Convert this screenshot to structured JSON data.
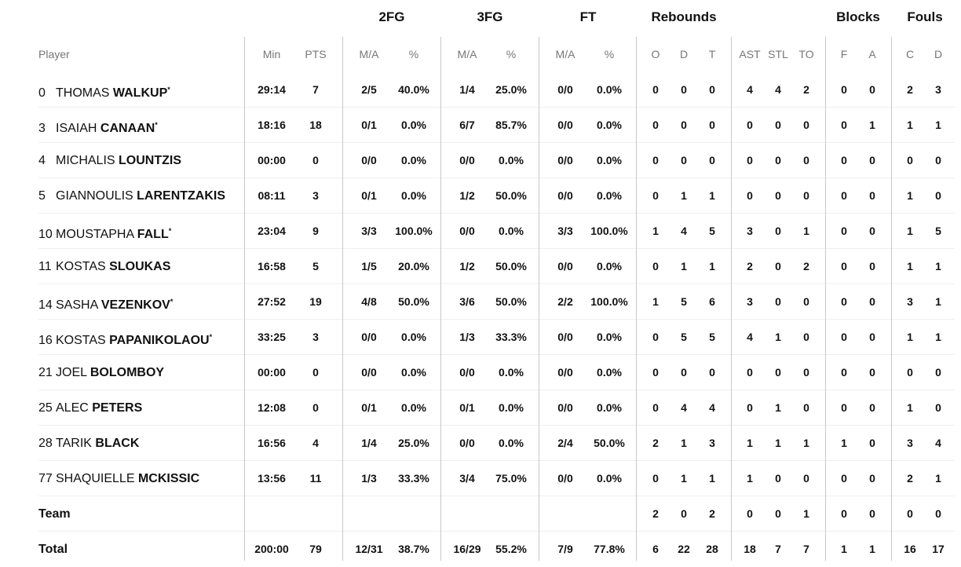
{
  "groups": {
    "fg2": "2FG",
    "fg3": "3FG",
    "ft": "FT",
    "rebounds": "Rebounds",
    "blocks": "Blocks",
    "fouls": "Fouls"
  },
  "columns": [
    "Player",
    "Min",
    "PTS",
    "M/A",
    "%",
    "M/A",
    "%",
    "M/A",
    "%",
    "O",
    "D",
    "T",
    "AST",
    "STL",
    "TO",
    "F",
    "A",
    "C",
    "D"
  ],
  "starter_mark": "*",
  "players": [
    {
      "num": "0",
      "first": "THOMAS",
      "last": "WALKUP",
      "starter": true,
      "stats": [
        "29:14",
        "7",
        "2/5",
        "40.0%",
        "1/4",
        "25.0%",
        "0/0",
        "0.0%",
        "0",
        "0",
        "0",
        "4",
        "4",
        "2",
        "0",
        "0",
        "2",
        "3"
      ]
    },
    {
      "num": "3",
      "first": "ISAIAH",
      "last": "CANAAN",
      "starter": true,
      "stats": [
        "18:16",
        "18",
        "0/1",
        "0.0%",
        "6/7",
        "85.7%",
        "0/0",
        "0.0%",
        "0",
        "0",
        "0",
        "0",
        "0",
        "0",
        "0",
        "1",
        "1",
        "1"
      ]
    },
    {
      "num": "4",
      "first": "MICHALIS",
      "last": "LOUNTZIS",
      "starter": false,
      "stats": [
        "00:00",
        "0",
        "0/0",
        "0.0%",
        "0/0",
        "0.0%",
        "0/0",
        "0.0%",
        "0",
        "0",
        "0",
        "0",
        "0",
        "0",
        "0",
        "0",
        "0",
        "0"
      ]
    },
    {
      "num": "5",
      "first": "GIANNOULIS",
      "last": "LARENTZAKIS",
      "starter": false,
      "stats": [
        "08:11",
        "3",
        "0/1",
        "0.0%",
        "1/2",
        "50.0%",
        "0/0",
        "0.0%",
        "0",
        "1",
        "1",
        "0",
        "0",
        "0",
        "0",
        "0",
        "1",
        "0"
      ]
    },
    {
      "num": "10",
      "first": "MOUSTAPHA",
      "last": "FALL",
      "starter": true,
      "stats": [
        "23:04",
        "9",
        "3/3",
        "100.0%",
        "0/0",
        "0.0%",
        "3/3",
        "100.0%",
        "1",
        "4",
        "5",
        "3",
        "0",
        "1",
        "0",
        "0",
        "1",
        "5"
      ]
    },
    {
      "num": "11",
      "first": "KOSTAS",
      "last": "SLOUKAS",
      "starter": false,
      "stats": [
        "16:58",
        "5",
        "1/5",
        "20.0%",
        "1/2",
        "50.0%",
        "0/0",
        "0.0%",
        "0",
        "1",
        "1",
        "2",
        "0",
        "2",
        "0",
        "0",
        "1",
        "1"
      ]
    },
    {
      "num": "14",
      "first": "SASHA",
      "last": "VEZENKOV",
      "starter": true,
      "stats": [
        "27:52",
        "19",
        "4/8",
        "50.0%",
        "3/6",
        "50.0%",
        "2/2",
        "100.0%",
        "1",
        "5",
        "6",
        "3",
        "0",
        "0",
        "0",
        "0",
        "3",
        "1"
      ]
    },
    {
      "num": "16",
      "first": "KOSTAS",
      "last": "PAPANIKOLAOU",
      "starter": true,
      "stats": [
        "33:25",
        "3",
        "0/0",
        "0.0%",
        "1/3",
        "33.3%",
        "0/0",
        "0.0%",
        "0",
        "5",
        "5",
        "4",
        "1",
        "0",
        "0",
        "0",
        "1",
        "1"
      ]
    },
    {
      "num": "21",
      "first": "JOEL",
      "last": "BOLOMBOY",
      "starter": false,
      "stats": [
        "00:00",
        "0",
        "0/0",
        "0.0%",
        "0/0",
        "0.0%",
        "0/0",
        "0.0%",
        "0",
        "0",
        "0",
        "0",
        "0",
        "0",
        "0",
        "0",
        "0",
        "0"
      ]
    },
    {
      "num": "25",
      "first": "ALEC",
      "last": "PETERS",
      "starter": false,
      "stats": [
        "12:08",
        "0",
        "0/1",
        "0.0%",
        "0/1",
        "0.0%",
        "0/0",
        "0.0%",
        "0",
        "4",
        "4",
        "0",
        "1",
        "0",
        "0",
        "0",
        "1",
        "0"
      ]
    },
    {
      "num": "28",
      "first": "TARIK",
      "last": "BLACK",
      "starter": false,
      "stats": [
        "16:56",
        "4",
        "1/4",
        "25.0%",
        "0/0",
        "0.0%",
        "2/4",
        "50.0%",
        "2",
        "1",
        "3",
        "1",
        "1",
        "1",
        "1",
        "0",
        "3",
        "4"
      ]
    },
    {
      "num": "77",
      "first": "SHAQUIELLE",
      "last": "MCKISSIC",
      "starter": false,
      "stats": [
        "13:56",
        "11",
        "1/3",
        "33.3%",
        "3/4",
        "75.0%",
        "0/0",
        "0.0%",
        "0",
        "1",
        "1",
        "1",
        "0",
        "0",
        "0",
        "0",
        "2",
        "1"
      ]
    }
  ],
  "team": {
    "label": "Team",
    "stats": [
      "",
      "",
      "",
      "",
      "",
      "",
      "",
      "",
      "2",
      "0",
      "2",
      "0",
      "0",
      "1",
      "0",
      "0",
      "0",
      "0"
    ]
  },
  "total": {
    "label": "Total",
    "stats": [
      "200:00",
      "79",
      "12/31",
      "38.7%",
      "16/29",
      "55.2%",
      "7/9",
      "77.8%",
      "6",
      "22",
      "28",
      "18",
      "7",
      "7",
      "1",
      "1",
      "16",
      "17"
    ]
  }
}
